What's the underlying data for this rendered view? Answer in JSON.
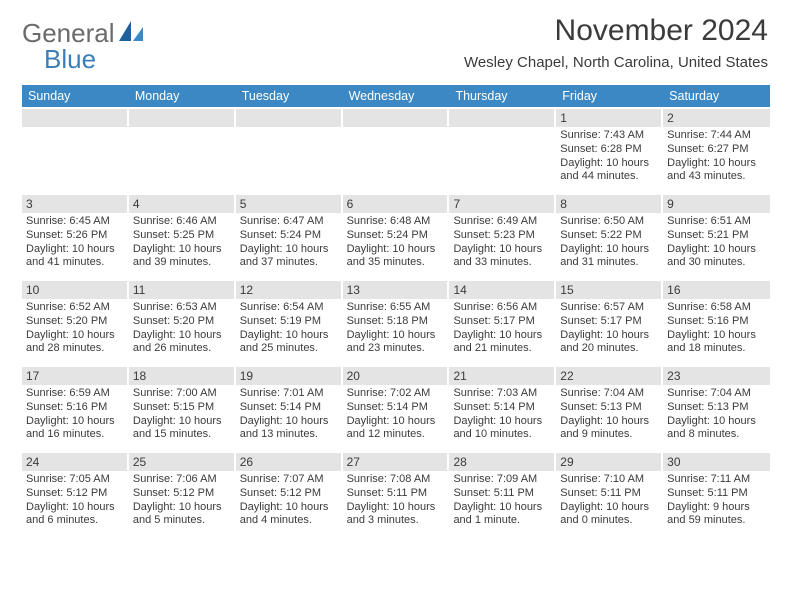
{
  "logo": {
    "text1": "General",
    "text2": "Blue"
  },
  "header": {
    "month_title": "November 2024",
    "location": "Wesley Chapel, North Carolina, United States"
  },
  "colors": {
    "header_bar": "#3b88c4",
    "header_text": "#ffffff",
    "daybar_bg": "#e4e4e4",
    "text": "#3b3b3b",
    "logo_gray": "#6b6b6b",
    "logo_blue": "#3b7fb8",
    "background": "#ffffff"
  },
  "fonts": {
    "month_title_size": 30,
    "location_size": 15,
    "dayheader_size": 12.5,
    "daynum_size": 12,
    "body_size": 11
  },
  "dayheaders": [
    "Sunday",
    "Monday",
    "Tuesday",
    "Wednesday",
    "Thursday",
    "Friday",
    "Saturday"
  ],
  "weeks": [
    [
      {
        "day": "",
        "sunrise": "",
        "sunset": "",
        "daylight1": "",
        "daylight2": ""
      },
      {
        "day": "",
        "sunrise": "",
        "sunset": "",
        "daylight1": "",
        "daylight2": ""
      },
      {
        "day": "",
        "sunrise": "",
        "sunset": "",
        "daylight1": "",
        "daylight2": ""
      },
      {
        "day": "",
        "sunrise": "",
        "sunset": "",
        "daylight1": "",
        "daylight2": ""
      },
      {
        "day": "",
        "sunrise": "",
        "sunset": "",
        "daylight1": "",
        "daylight2": ""
      },
      {
        "day": "1",
        "sunrise": "Sunrise: 7:43 AM",
        "sunset": "Sunset: 6:28 PM",
        "daylight1": "Daylight: 10 hours",
        "daylight2": "and 44 minutes."
      },
      {
        "day": "2",
        "sunrise": "Sunrise: 7:44 AM",
        "sunset": "Sunset: 6:27 PM",
        "daylight1": "Daylight: 10 hours",
        "daylight2": "and 43 minutes."
      }
    ],
    [
      {
        "day": "3",
        "sunrise": "Sunrise: 6:45 AM",
        "sunset": "Sunset: 5:26 PM",
        "daylight1": "Daylight: 10 hours",
        "daylight2": "and 41 minutes."
      },
      {
        "day": "4",
        "sunrise": "Sunrise: 6:46 AM",
        "sunset": "Sunset: 5:25 PM",
        "daylight1": "Daylight: 10 hours",
        "daylight2": "and 39 minutes."
      },
      {
        "day": "5",
        "sunrise": "Sunrise: 6:47 AM",
        "sunset": "Sunset: 5:24 PM",
        "daylight1": "Daylight: 10 hours",
        "daylight2": "and 37 minutes."
      },
      {
        "day": "6",
        "sunrise": "Sunrise: 6:48 AM",
        "sunset": "Sunset: 5:24 PM",
        "daylight1": "Daylight: 10 hours",
        "daylight2": "and 35 minutes."
      },
      {
        "day": "7",
        "sunrise": "Sunrise: 6:49 AM",
        "sunset": "Sunset: 5:23 PM",
        "daylight1": "Daylight: 10 hours",
        "daylight2": "and 33 minutes."
      },
      {
        "day": "8",
        "sunrise": "Sunrise: 6:50 AM",
        "sunset": "Sunset: 5:22 PM",
        "daylight1": "Daylight: 10 hours",
        "daylight2": "and 31 minutes."
      },
      {
        "day": "9",
        "sunrise": "Sunrise: 6:51 AM",
        "sunset": "Sunset: 5:21 PM",
        "daylight1": "Daylight: 10 hours",
        "daylight2": "and 30 minutes."
      }
    ],
    [
      {
        "day": "10",
        "sunrise": "Sunrise: 6:52 AM",
        "sunset": "Sunset: 5:20 PM",
        "daylight1": "Daylight: 10 hours",
        "daylight2": "and 28 minutes."
      },
      {
        "day": "11",
        "sunrise": "Sunrise: 6:53 AM",
        "sunset": "Sunset: 5:20 PM",
        "daylight1": "Daylight: 10 hours",
        "daylight2": "and 26 minutes."
      },
      {
        "day": "12",
        "sunrise": "Sunrise: 6:54 AM",
        "sunset": "Sunset: 5:19 PM",
        "daylight1": "Daylight: 10 hours",
        "daylight2": "and 25 minutes."
      },
      {
        "day": "13",
        "sunrise": "Sunrise: 6:55 AM",
        "sunset": "Sunset: 5:18 PM",
        "daylight1": "Daylight: 10 hours",
        "daylight2": "and 23 minutes."
      },
      {
        "day": "14",
        "sunrise": "Sunrise: 6:56 AM",
        "sunset": "Sunset: 5:17 PM",
        "daylight1": "Daylight: 10 hours",
        "daylight2": "and 21 minutes."
      },
      {
        "day": "15",
        "sunrise": "Sunrise: 6:57 AM",
        "sunset": "Sunset: 5:17 PM",
        "daylight1": "Daylight: 10 hours",
        "daylight2": "and 20 minutes."
      },
      {
        "day": "16",
        "sunrise": "Sunrise: 6:58 AM",
        "sunset": "Sunset: 5:16 PM",
        "daylight1": "Daylight: 10 hours",
        "daylight2": "and 18 minutes."
      }
    ],
    [
      {
        "day": "17",
        "sunrise": "Sunrise: 6:59 AM",
        "sunset": "Sunset: 5:16 PM",
        "daylight1": "Daylight: 10 hours",
        "daylight2": "and 16 minutes."
      },
      {
        "day": "18",
        "sunrise": "Sunrise: 7:00 AM",
        "sunset": "Sunset: 5:15 PM",
        "daylight1": "Daylight: 10 hours",
        "daylight2": "and 15 minutes."
      },
      {
        "day": "19",
        "sunrise": "Sunrise: 7:01 AM",
        "sunset": "Sunset: 5:14 PM",
        "daylight1": "Daylight: 10 hours",
        "daylight2": "and 13 minutes."
      },
      {
        "day": "20",
        "sunrise": "Sunrise: 7:02 AM",
        "sunset": "Sunset: 5:14 PM",
        "daylight1": "Daylight: 10 hours",
        "daylight2": "and 12 minutes."
      },
      {
        "day": "21",
        "sunrise": "Sunrise: 7:03 AM",
        "sunset": "Sunset: 5:14 PM",
        "daylight1": "Daylight: 10 hours",
        "daylight2": "and 10 minutes."
      },
      {
        "day": "22",
        "sunrise": "Sunrise: 7:04 AM",
        "sunset": "Sunset: 5:13 PM",
        "daylight1": "Daylight: 10 hours",
        "daylight2": "and 9 minutes."
      },
      {
        "day": "23",
        "sunrise": "Sunrise: 7:04 AM",
        "sunset": "Sunset: 5:13 PM",
        "daylight1": "Daylight: 10 hours",
        "daylight2": "and 8 minutes."
      }
    ],
    [
      {
        "day": "24",
        "sunrise": "Sunrise: 7:05 AM",
        "sunset": "Sunset: 5:12 PM",
        "daylight1": "Daylight: 10 hours",
        "daylight2": "and 6 minutes."
      },
      {
        "day": "25",
        "sunrise": "Sunrise: 7:06 AM",
        "sunset": "Sunset: 5:12 PM",
        "daylight1": "Daylight: 10 hours",
        "daylight2": "and 5 minutes."
      },
      {
        "day": "26",
        "sunrise": "Sunrise: 7:07 AM",
        "sunset": "Sunset: 5:12 PM",
        "daylight1": "Daylight: 10 hours",
        "daylight2": "and 4 minutes."
      },
      {
        "day": "27",
        "sunrise": "Sunrise: 7:08 AM",
        "sunset": "Sunset: 5:11 PM",
        "daylight1": "Daylight: 10 hours",
        "daylight2": "and 3 minutes."
      },
      {
        "day": "28",
        "sunrise": "Sunrise: 7:09 AM",
        "sunset": "Sunset: 5:11 PM",
        "daylight1": "Daylight: 10 hours",
        "daylight2": "and 1 minute."
      },
      {
        "day": "29",
        "sunrise": "Sunrise: 7:10 AM",
        "sunset": "Sunset: 5:11 PM",
        "daylight1": "Daylight: 10 hours",
        "daylight2": "and 0 minutes."
      },
      {
        "day": "30",
        "sunrise": "Sunrise: 7:11 AM",
        "sunset": "Sunset: 5:11 PM",
        "daylight1": "Daylight: 9 hours",
        "daylight2": "and 59 minutes."
      }
    ]
  ]
}
